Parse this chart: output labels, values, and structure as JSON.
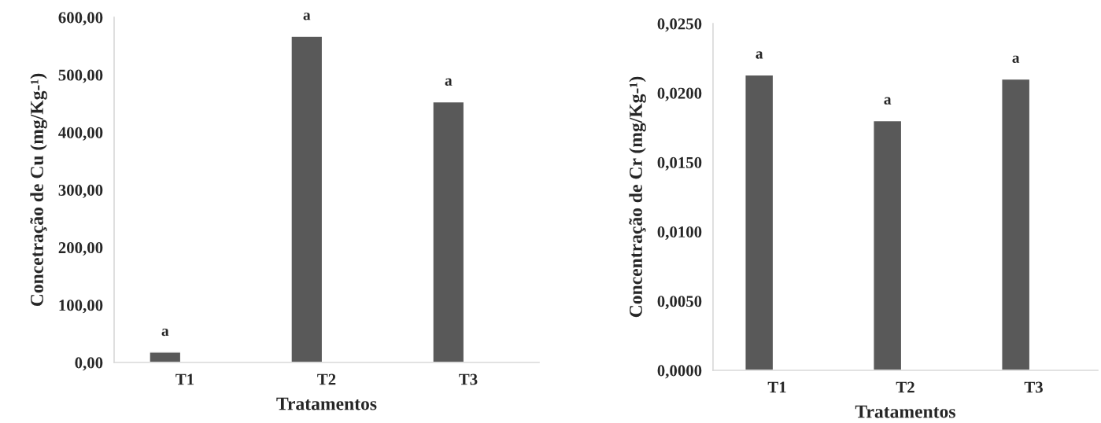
{
  "chart_data": [
    {
      "type": "bar",
      "categories": [
        "T1",
        "T2",
        "T3"
      ],
      "values": [
        18,
        567,
        453
      ],
      "color": "#595959",
      "value_labels": [
        "a",
        "a",
        "a"
      ],
      "xlabel": "Tratamentos",
      "ylabel": "Concetração de Cu (mg/Kg-¹)",
      "ylim": [
        0,
        600
      ],
      "yticks": [
        {
          "value": 0,
          "label": "0,00"
        },
        {
          "value": 100,
          "label": "100,00"
        },
        {
          "value": 200,
          "label": "200,00"
        },
        {
          "value": 300,
          "label": "300,00"
        },
        {
          "value": 400,
          "label": "400,00"
        },
        {
          "value": 500,
          "label": "500,00"
        },
        {
          "value": 600,
          "label": "600,00"
        }
      ],
      "grid": false,
      "legend": false
    },
    {
      "type": "bar",
      "categories": [
        "T1",
        "T2",
        "T3"
      ],
      "values": [
        0.0213,
        0.018,
        0.021
      ],
      "color": "#595959",
      "value_labels": [
        "a",
        "a",
        "a"
      ],
      "xlabel": "Tratamentos",
      "ylabel": "Concentração de Cr (mg/Kg-¹)",
      "ylim": [
        0,
        0.025
      ],
      "yticks": [
        {
          "value": 0,
          "label": "0,0000"
        },
        {
          "value": 0.005,
          "label": "0,0050"
        },
        {
          "value": 0.01,
          "label": "0,0100"
        },
        {
          "value": 0.015,
          "label": "0,0150"
        },
        {
          "value": 0.02,
          "label": "0,0200"
        },
        {
          "value": 0.025,
          "label": "0,0250"
        }
      ],
      "grid": false,
      "legend": false
    }
  ]
}
